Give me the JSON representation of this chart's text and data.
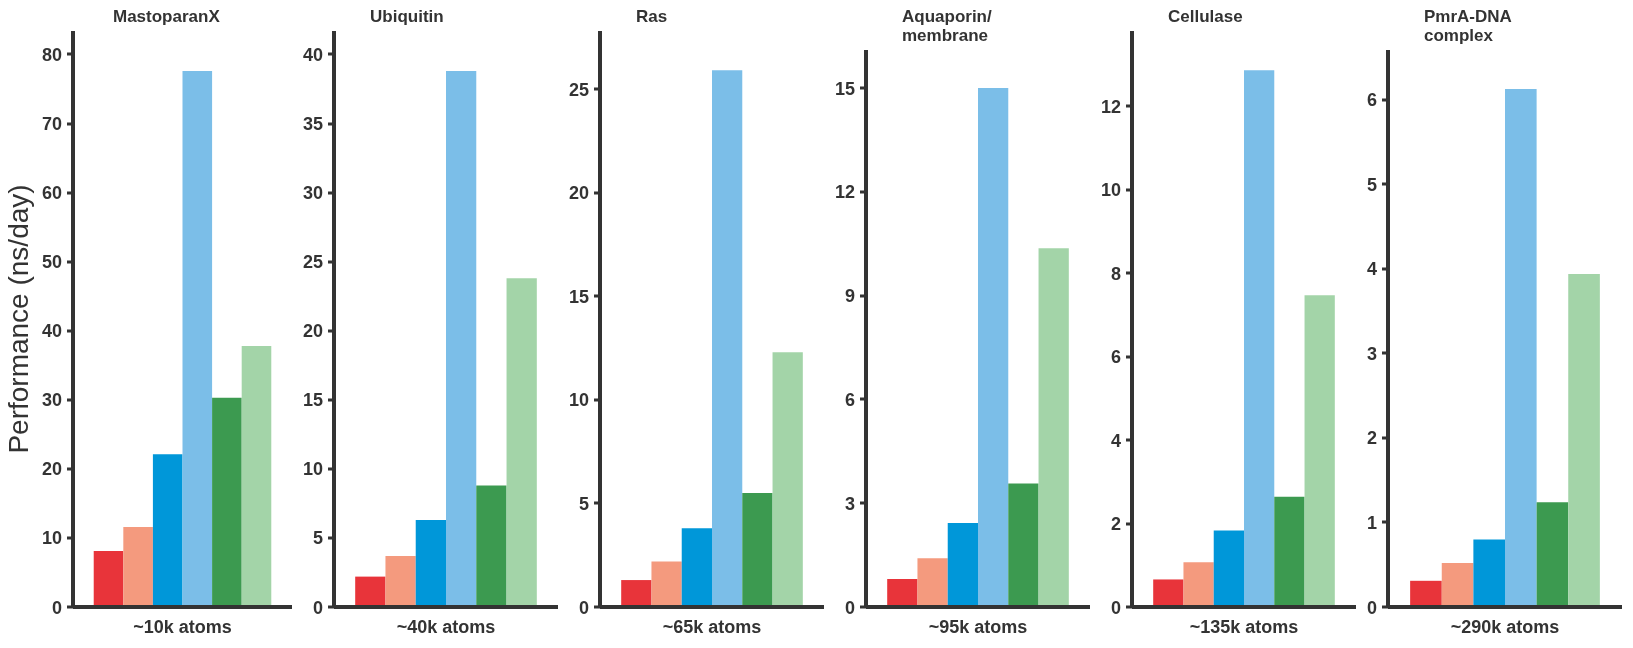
{
  "chart_data": [
    {
      "type": "bar",
      "title": "MastoparanX",
      "xlabel": "~10k atoms",
      "ylabel": "Performance (ns/day)",
      "categories": [
        null,
        null,
        null,
        null,
        null,
        null
      ],
      "values": [
        8.1,
        11.6,
        22.1,
        77.6,
        30.3,
        37.8
      ],
      "colors": [
        "#e8343a",
        "#f49a7e",
        "#0097d9",
        "#7bbee8",
        "#3c9a50",
        "#a3d4a8"
      ],
      "ylim": [
        0,
        83.4
      ],
      "yticks": [
        0,
        10,
        20,
        30,
        40,
        50,
        60,
        70,
        80
      ],
      "grid": false,
      "tick_labels": "y"
    },
    {
      "type": "bar",
      "title": "Ubiquitin",
      "xlabel": "~40k atoms",
      "categories": [
        null,
        null,
        null,
        null,
        null,
        null
      ],
      "values": [
        2.2,
        3.7,
        6.3,
        38.8,
        8.8,
        23.8
      ],
      "colors": [
        "#e8343a",
        "#f49a7e",
        "#0097d9",
        "#7bbee8",
        "#3c9a50",
        "#a3d4a8"
      ],
      "ylim": [
        0,
        41.7
      ],
      "yticks": [
        0,
        5,
        10,
        15,
        20,
        25,
        30,
        35,
        40
      ],
      "grid": false,
      "tick_labels": "y"
    },
    {
      "type": "bar",
      "title": "Ras",
      "xlabel": "~65k atoms",
      "categories": [
        null,
        null,
        null,
        null,
        null,
        null
      ],
      "values": [
        1.3,
        2.2,
        3.8,
        25.9,
        5.5,
        12.3
      ],
      "colors": [
        "#e8343a",
        "#f49a7e",
        "#0097d9",
        "#7bbee8",
        "#3c9a50",
        "#a3d4a8"
      ],
      "ylim": [
        0,
        27.8
      ],
      "yticks": [
        0,
        5,
        10,
        15,
        20,
        25
      ],
      "grid": false,
      "tick_labels": "y"
    },
    {
      "type": "bar",
      "title": "Aquaporin/\nmembrane",
      "xlabel": "~95k atoms",
      "categories": [
        null,
        null,
        null,
        null,
        null,
        null
      ],
      "values": [
        0.81,
        1.41,
        2.43,
        15.0,
        3.57,
        10.37
      ],
      "colors": [
        "#e8343a",
        "#f49a7e",
        "#0097d9",
        "#7bbee8",
        "#3c9a50",
        "#a3d4a8"
      ],
      "ylim": [
        0,
        16.1
      ],
      "yticks": [
        0,
        3,
        6,
        9,
        12,
        15
      ],
      "grid": false,
      "tick_labels": "y"
    },
    {
      "type": "bar",
      "title": "Cellulase",
      "xlabel": "~135k atoms",
      "categories": [
        null,
        null,
        null,
        null,
        null,
        null
      ],
      "values": [
        0.66,
        1.07,
        1.83,
        12.86,
        2.64,
        7.47
      ],
      "colors": [
        "#e8343a",
        "#f49a7e",
        "#0097d9",
        "#7bbee8",
        "#3c9a50",
        "#a3d4a8"
      ],
      "ylim": [
        0,
        13.8
      ],
      "yticks": [
        0,
        2,
        4,
        6,
        8,
        10,
        12
      ],
      "grid": false,
      "tick_labels": "y"
    },
    {
      "type": "bar",
      "title": "PmrA-DNA\ncomplex",
      "xlabel": "~290k atoms",
      "categories": [
        null,
        null,
        null,
        null,
        null,
        null
      ],
      "values": [
        0.31,
        0.52,
        0.8,
        6.13,
        1.24,
        3.94
      ],
      "colors": [
        "#e8343a",
        "#f49a7e",
        "#0097d9",
        "#7bbee8",
        "#3c9a50",
        "#a3d4a8"
      ],
      "ylim": [
        0,
        6.59
      ],
      "yticks": [
        0,
        1,
        2,
        3,
        4,
        5,
        6
      ],
      "grid": false,
      "tick_labels": "y"
    }
  ]
}
